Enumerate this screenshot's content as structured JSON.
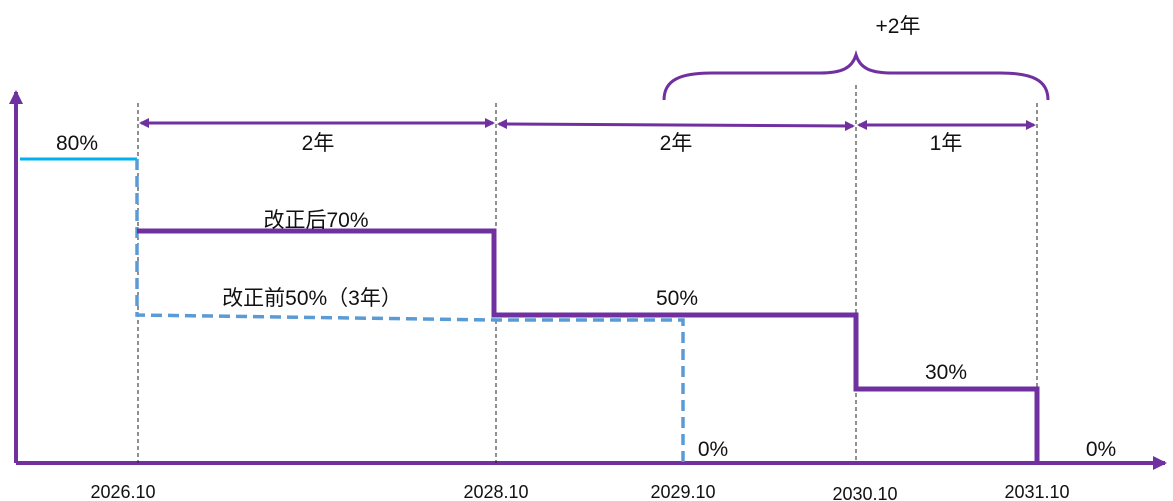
{
  "ticks": [
    "2026.10",
    "2028.10",
    "2029.10",
    "2030.10",
    "2031.10"
  ],
  "spans": [
    "2年",
    "2年",
    "1年"
  ],
  "extension_label": "+2年",
  "levels": {
    "initial": "80%",
    "after_revision": "改正后70%",
    "before_revision": "改正前50%（3年）",
    "mid": "50%",
    "late": "30%",
    "zero_before": "0%",
    "zero_after": "0%"
  },
  "colors": {
    "purple": "#7030a0",
    "blue_dashed": "#5b9bd5",
    "cyan": "#00b0f0",
    "axis": "#7030a0"
  }
}
